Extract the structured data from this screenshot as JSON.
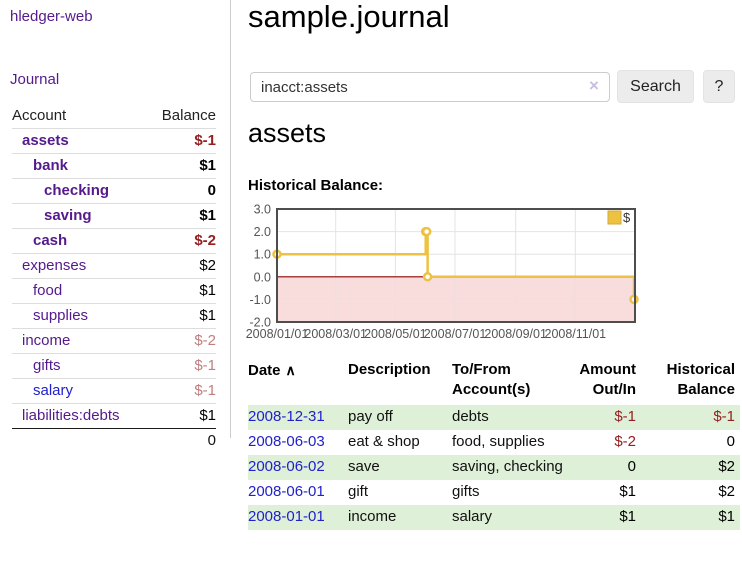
{
  "app": {
    "brand": "hledger-web",
    "nav_journal": "Journal"
  },
  "sidebar": {
    "header": {
      "account": "Account",
      "balance": "Balance"
    },
    "accounts": [
      {
        "name": "assets",
        "indent": 1,
        "bold": true,
        "link_style": "visited",
        "balance": "$-1",
        "balance_style": "neg-strong"
      },
      {
        "name": "bank",
        "indent": 2,
        "bold": true,
        "link_style": "visited",
        "balance": "$1",
        "balance_style": "pos"
      },
      {
        "name": "checking",
        "indent": 3,
        "bold": true,
        "link_style": "visited",
        "balance": "0",
        "balance_style": "pos"
      },
      {
        "name": "saving",
        "indent": 3,
        "bold": true,
        "link_style": "visited",
        "balance": "$1",
        "balance_style": "pos"
      },
      {
        "name": "cash",
        "indent": 2,
        "bold": true,
        "link_style": "visited",
        "balance": "$-2",
        "balance_style": "neg-strong"
      },
      {
        "name": "expenses",
        "indent": 1,
        "bold": false,
        "link_style": "visited",
        "balance": "$2",
        "balance_style": "pos"
      },
      {
        "name": "food",
        "indent": 2,
        "bold": false,
        "link_style": "visited",
        "balance": "$1",
        "balance_style": "pos"
      },
      {
        "name": "supplies",
        "indent": 2,
        "bold": false,
        "link_style": "visited",
        "balance": "$1",
        "balance_style": "pos"
      },
      {
        "name": "income",
        "indent": 1,
        "bold": false,
        "link_style": "visited",
        "balance": "$-2",
        "balance_style": "neg-faded"
      },
      {
        "name": "gifts",
        "indent": 2,
        "bold": false,
        "link_style": "visited",
        "balance": "$-1",
        "balance_style": "neg-faded"
      },
      {
        "name": "salary",
        "indent": 2,
        "bold": false,
        "link_style": "unvisited",
        "balance": "$-1",
        "balance_style": "neg-faded"
      },
      {
        "name": "liabilities:debts",
        "indent": 1,
        "bold": false,
        "link_style": "visited",
        "balance": "$1",
        "balance_style": "pos"
      }
    ],
    "total": "0"
  },
  "header": {
    "title": "sample.journal"
  },
  "search": {
    "value": "inacct:assets",
    "clear_icon": "×",
    "button": "Search",
    "help_button": "?"
  },
  "account_page": {
    "heading": "assets",
    "chart_label": "Historical Balance:"
  },
  "chart_data": {
    "type": "line",
    "step": true,
    "title": "Historical Balance:",
    "legend": [
      {
        "label": "$",
        "color": "#edc240"
      }
    ],
    "x_ticks": [
      "2008/01/01",
      "2008/03/01",
      "2008/05/01",
      "2008/07/01",
      "2008/09/01",
      "2008/11/01"
    ],
    "y_ticks": [
      3.0,
      2.0,
      1.0,
      0.0,
      -1.0,
      -2.0
    ],
    "ylim": [
      -2,
      3
    ],
    "x_range": [
      "2008-01-01",
      "2008-12-31"
    ],
    "series": [
      {
        "name": "$",
        "color": "#edc240",
        "points": [
          [
            "2008-01-01",
            1
          ],
          [
            "2008-06-01",
            2
          ],
          [
            "2008-06-02",
            2
          ],
          [
            "2008-06-03",
            0
          ],
          [
            "2008-12-31",
            -1
          ]
        ]
      }
    ],
    "grid": true,
    "legend_position": "top-right",
    "negative_region_color": "#f9dcdc",
    "zero_line_color": "#8b0000"
  },
  "register": {
    "sort_icon": "∧",
    "columns": [
      {
        "label": "Date",
        "sortable": true,
        "align": "left"
      },
      {
        "label": "Description",
        "align": "left"
      },
      {
        "label": "To/From Account(s)",
        "align": "left"
      },
      {
        "label": "Amount Out/In",
        "align": "right"
      },
      {
        "label": "Historical Balance",
        "align": "right"
      }
    ],
    "rows": [
      {
        "date": "2008-12-31",
        "description": "pay off",
        "accounts": "debts",
        "amount": "$-1",
        "amount_style": "neg",
        "balance": "$-1",
        "balance_style": "neg",
        "highlight": true
      },
      {
        "date": "2008-06-03",
        "description": "eat & shop",
        "accounts": "food, supplies",
        "amount": "$-2",
        "amount_style": "neg",
        "balance": "0",
        "balance_style": "pos",
        "highlight": false
      },
      {
        "date": "2008-06-02",
        "description": "save",
        "accounts": "saving, checking",
        "amount": "0",
        "amount_style": "pos",
        "balance": "$2",
        "balance_style": "pos",
        "highlight": true
      },
      {
        "date": "2008-06-01",
        "description": "gift",
        "accounts": "gifts",
        "amount": "$1",
        "amount_style": "pos",
        "balance": "$2",
        "balance_style": "pos",
        "highlight": false
      },
      {
        "date": "2008-01-01",
        "description": "income",
        "accounts": "salary",
        "amount": "$1",
        "amount_style": "pos",
        "balance": "$1",
        "balance_style": "pos",
        "highlight": true
      }
    ]
  }
}
